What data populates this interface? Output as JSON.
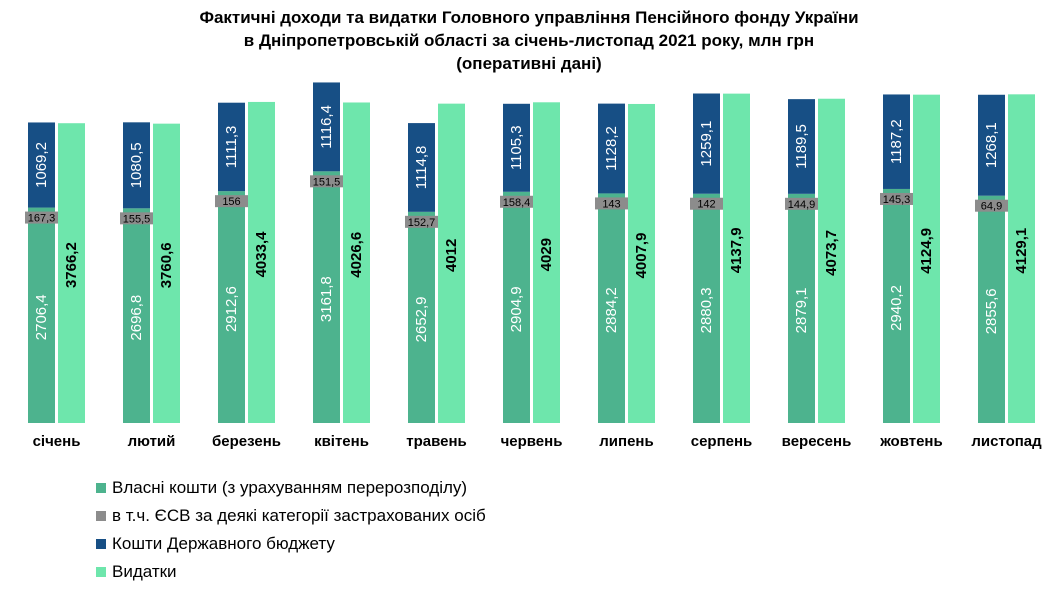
{
  "chart_data": {
    "type": "bar",
    "title": [
      "Фактичні доходи та видатки Головного управління Пенсійного фонду України",
      "в Дніпропетровській області за січень-листопад 2021 року,  млн грн",
      "(оперативні дані)"
    ],
    "categories": [
      "січень",
      "лютий",
      "березень",
      "квітень",
      "травень",
      "червень",
      "липень",
      "серпень",
      "вересень",
      "жовтень",
      "листопад"
    ],
    "series": [
      {
        "name": "Власні кошти (з урахуванням перерозподілу)",
        "color": "#4db38e",
        "values": [
          2706.4,
          2696.8,
          2912.6,
          3161.8,
          2652.9,
          2904.9,
          2884.2,
          2880.3,
          2879.1,
          2940.2,
          2855.6
        ],
        "labels": [
          "2706,4",
          "2696,8",
          "2912,6",
          "3161,8",
          "2652,9",
          "2904,9",
          "2884,2",
          "2880,3",
          "2879,1",
          "2940,2",
          "2855,6"
        ]
      },
      {
        "name": "в т.ч. ЄСВ за деякі категорії застрахованих осіб",
        "color": "#8c8c8c",
        "values": [
          167.3,
          155.5,
          156,
          151.5,
          152.7,
          158.4,
          143,
          142,
          144.9,
          145.3,
          64.9
        ],
        "labels": [
          "167,3",
          "155,5",
          "156",
          "151,5",
          "152,7",
          "158,4",
          "143",
          "142",
          "144,9",
          "145,3",
          "64,9"
        ]
      },
      {
        "name": "Кошти Державного бюджету",
        "color": "#174f85",
        "values": [
          1069.2,
          1080.5,
          1111.3,
          1116.4,
          1114.8,
          1105.3,
          1128.2,
          1259.1,
          1189.5,
          1187.2,
          1268.1
        ],
        "labels": [
          "1069,2",
          "1080,5",
          "1111,3",
          "1116,4",
          "1114,8",
          "1105,3",
          "1128,2",
          "1259,1",
          "1189,5",
          "1187,2",
          "1268,1"
        ]
      },
      {
        "name": "Видатки",
        "color": "#6ee6ac",
        "values": [
          3766.2,
          3760.6,
          4033.4,
          4026.6,
          4012,
          4029,
          4007.9,
          4137.9,
          4073.7,
          4124.9,
          4129.1
        ],
        "labels": [
          "3766,2",
          "3760,6",
          "4033,4",
          "4026,6",
          "4012",
          "4029",
          "4007,9",
          "4137,9",
          "4073,7",
          "4124,9",
          "4129,1"
        ]
      }
    ],
    "grid": false,
    "legend_position": "bottom-left"
  }
}
